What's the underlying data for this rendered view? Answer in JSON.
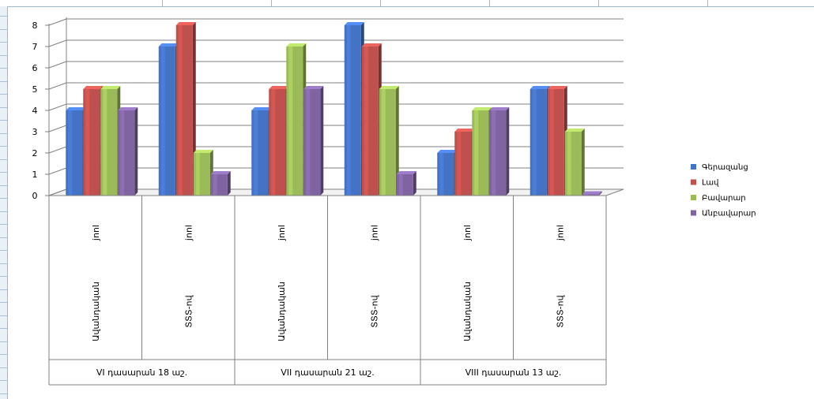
{
  "chart_data": {
    "type": "bar",
    "ylim": [
      0,
      8
    ],
    "yticks": [
      "0",
      "1",
      "2",
      "3",
      "4",
      "5",
      "6",
      "7",
      "8"
    ],
    "categories": [
      "jnnl",
      "jnnl",
      "jnnl",
      "jnnl",
      "jnnl",
      "jnnl"
    ],
    "subcategories": [
      "Ավանդական",
      "ՏՏՏ-ով",
      "Ավանդական",
      "ՏՏՏ-ով",
      "Ավանդական",
      "ՏՏՏ-ով"
    ],
    "groups": [
      "VI դասարան 18 աշ.",
      "VII դասարան  21 աշ.",
      "VIII դասարան  13 աշ."
    ],
    "series": [
      {
        "name": "Գերազանց",
        "color": "#4472c4",
        "values": [
          4,
          7,
          4,
          8,
          2,
          5
        ]
      },
      {
        "name": "Լավ",
        "color": "#c0504d",
        "values": [
          5,
          8,
          5,
          7,
          3,
          5
        ]
      },
      {
        "name": "Բավարար",
        "color": "#9bbb59",
        "values": [
          5,
          2,
          7,
          5,
          4,
          3
        ]
      },
      {
        "name": "Անբավարար",
        "color": "#8064a2",
        "values": [
          4,
          1,
          5,
          1,
          4,
          0
        ]
      }
    ],
    "legend_position": "right",
    "grid": true
  }
}
